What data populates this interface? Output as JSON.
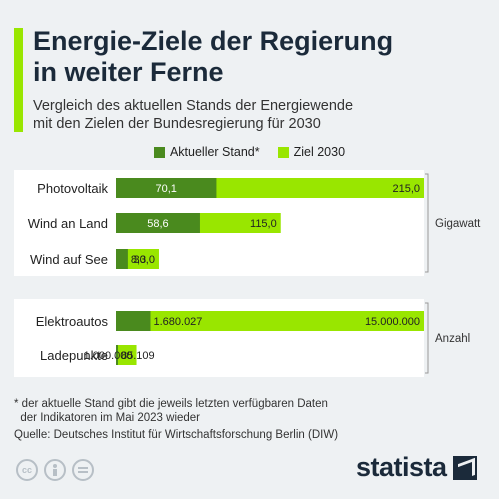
{
  "header": {
    "title_line1": "Energie-Ziele der Regierung",
    "title_line2": "in weiter Ferne",
    "subtitle_line1": "Vergleich des aktuellen Stands der Energiewende",
    "subtitle_line2": "mit den Zielen der Bundesregierung für 2030"
  },
  "colors": {
    "accent": "#99e600",
    "current": "#4a8a1e",
    "target": "#99e600",
    "panel": "#ffffff",
    "text": "#1b2a3a"
  },
  "chart_data": [
    {
      "type": "bar",
      "orientation": "horizontal",
      "legend": [
        "Aktueller Stand*",
        "Ziel 2030"
      ],
      "legend_position": "top",
      "group_label": "Gigawatt",
      "categories": [
        "Photovoltaik",
        "Wind an Land",
        "Wind auf See"
      ],
      "series": [
        {
          "name": "Aktueller Stand*",
          "values": [
            70.1,
            58.6,
            8.3
          ],
          "labels": [
            "70,1",
            "58,6",
            "8,3"
          ]
        },
        {
          "name": "Ziel 2030",
          "values": [
            215.0,
            115.0,
            30.0
          ],
          "labels": [
            "215,0",
            "115,0",
            "30,0"
          ]
        }
      ]
    },
    {
      "type": "bar",
      "orientation": "horizontal",
      "group_label": "Anzahl",
      "categories": [
        "Elektroautos",
        "Ladepunkte"
      ],
      "series": [
        {
          "name": "Aktueller Stand*",
          "values": [
            1680027,
            85109
          ],
          "labels": [
            "1.680.027",
            "85.109"
          ]
        },
        {
          "name": "Ziel 2030",
          "values": [
            15000000,
            1000000
          ],
          "labels": [
            "15.000.000",
            "1.000.000"
          ]
        }
      ]
    }
  ],
  "footer": {
    "footnote_line1": "* der aktuelle Stand gibt die jeweils letzten verfügbaren Daten",
    "footnote_line2": "  der Indikatoren im Mai 2023 wieder",
    "source": "Quelle: Deutsches Institut für Wirtschaftsforschung Berlin (DIW)",
    "brand": "statista",
    "license_icons": [
      "cc-icon",
      "person-icon",
      "equals-icon"
    ]
  }
}
